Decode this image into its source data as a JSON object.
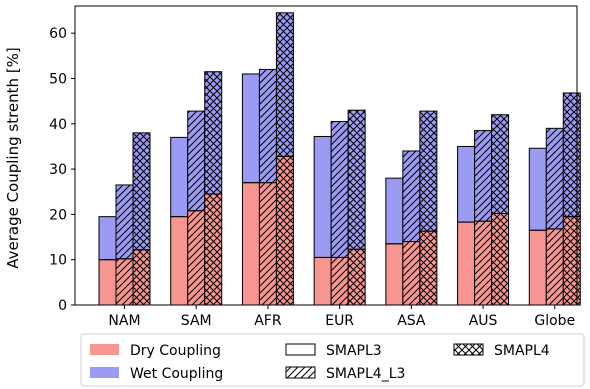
{
  "chart_data": {
    "type": "bar",
    "stacked": true,
    "categories": [
      "NAM",
      "SAM",
      "AFR",
      "EUR",
      "ASA",
      "AUS",
      "Globe"
    ],
    "ylabel": "Average Coupling strenth [%]",
    "ylim": [
      0,
      66
    ],
    "yticks": [
      0,
      10,
      20,
      30,
      40,
      50,
      60
    ],
    "grid": false,
    "legend_position": "bottom",
    "stack_components": [
      {
        "name": "Dry Coupling",
        "color": "#f79591"
      },
      {
        "name": "Wet Coupling",
        "color": "#9b9bf3"
      }
    ],
    "products": [
      {
        "name": "SMAPL3",
        "hatch": "none"
      },
      {
        "name": "SMAPL4_L3",
        "hatch": "diagonal"
      },
      {
        "name": "SMAPL4",
        "hatch": "crosshatch"
      }
    ],
    "series": [
      {
        "name": "SMAPL3",
        "dry": [
          10,
          19.5,
          27,
          10.5,
          13.5,
          18.3,
          16.5
        ],
        "total": [
          19.5,
          37,
          51,
          37.2,
          28,
          35,
          34.6
        ]
      },
      {
        "name": "SMAPL4_L3",
        "dry": [
          10.2,
          20.8,
          27,
          10.5,
          14,
          18.5,
          16.8
        ],
        "total": [
          26.5,
          42.8,
          52,
          40.5,
          34,
          38.5,
          39
        ]
      },
      {
        "name": "SMAPL4",
        "dry": [
          12.2,
          24.5,
          32.8,
          12.3,
          16.3,
          20.2,
          19.5
        ],
        "total": [
          38,
          51.5,
          64.5,
          43,
          42.8,
          42,
          46.8
        ]
      }
    ]
  }
}
